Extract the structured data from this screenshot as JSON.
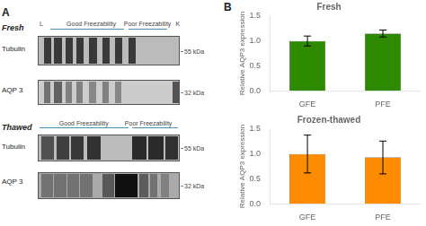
{
  "chart_data": [
    {
      "type": "bar",
      "title": "Fresh",
      "categories": [
        "GFE",
        "PFE"
      ],
      "values": [
        1.0,
        1.15
      ],
      "errors": [
        0.1,
        0.07
      ],
      "color": "#2e8b00",
      "ylabel": "Relative AQP3 expression",
      "ylim": [
        0,
        1.5
      ],
      "yticks": [
        {
          "value": 0,
          "label": "0.0"
        },
        0.5,
        {
          "value": 1,
          "label": "1.0"
        },
        1.5
      ],
      "grid": false,
      "annotations": [
        "A",
        "Fresh",
        "L",
        "Good Freezability",
        "Poor Freezability",
        "K",
        "Tubulin",
        "55 kDa",
        "AQP 3",
        "32 kDa",
        "Thawed",
        "Good Freezability",
        "Poor Freezability",
        "Tubulin",
        "55 kDa",
        "AQP 3",
        "32 kDa",
        "B"
      ]
    },
    {
      "type": "bar",
      "title": "Frozen-thawed",
      "categories": [
        "GFE",
        "PFE"
      ],
      "values": [
        1.0,
        0.93
      ],
      "errors": [
        0.38,
        0.33
      ],
      "color": "#ff8c00",
      "ylabel": "Relative AQP3 expression",
      "ylim": [
        0,
        1.5
      ],
      "yticks": [
        {
          "value": 0,
          "label": "0.0"
        },
        0.5,
        {
          "value": 1,
          "label": "1.0"
        },
        1.5
      ],
      "grid": false
    }
  ]
}
